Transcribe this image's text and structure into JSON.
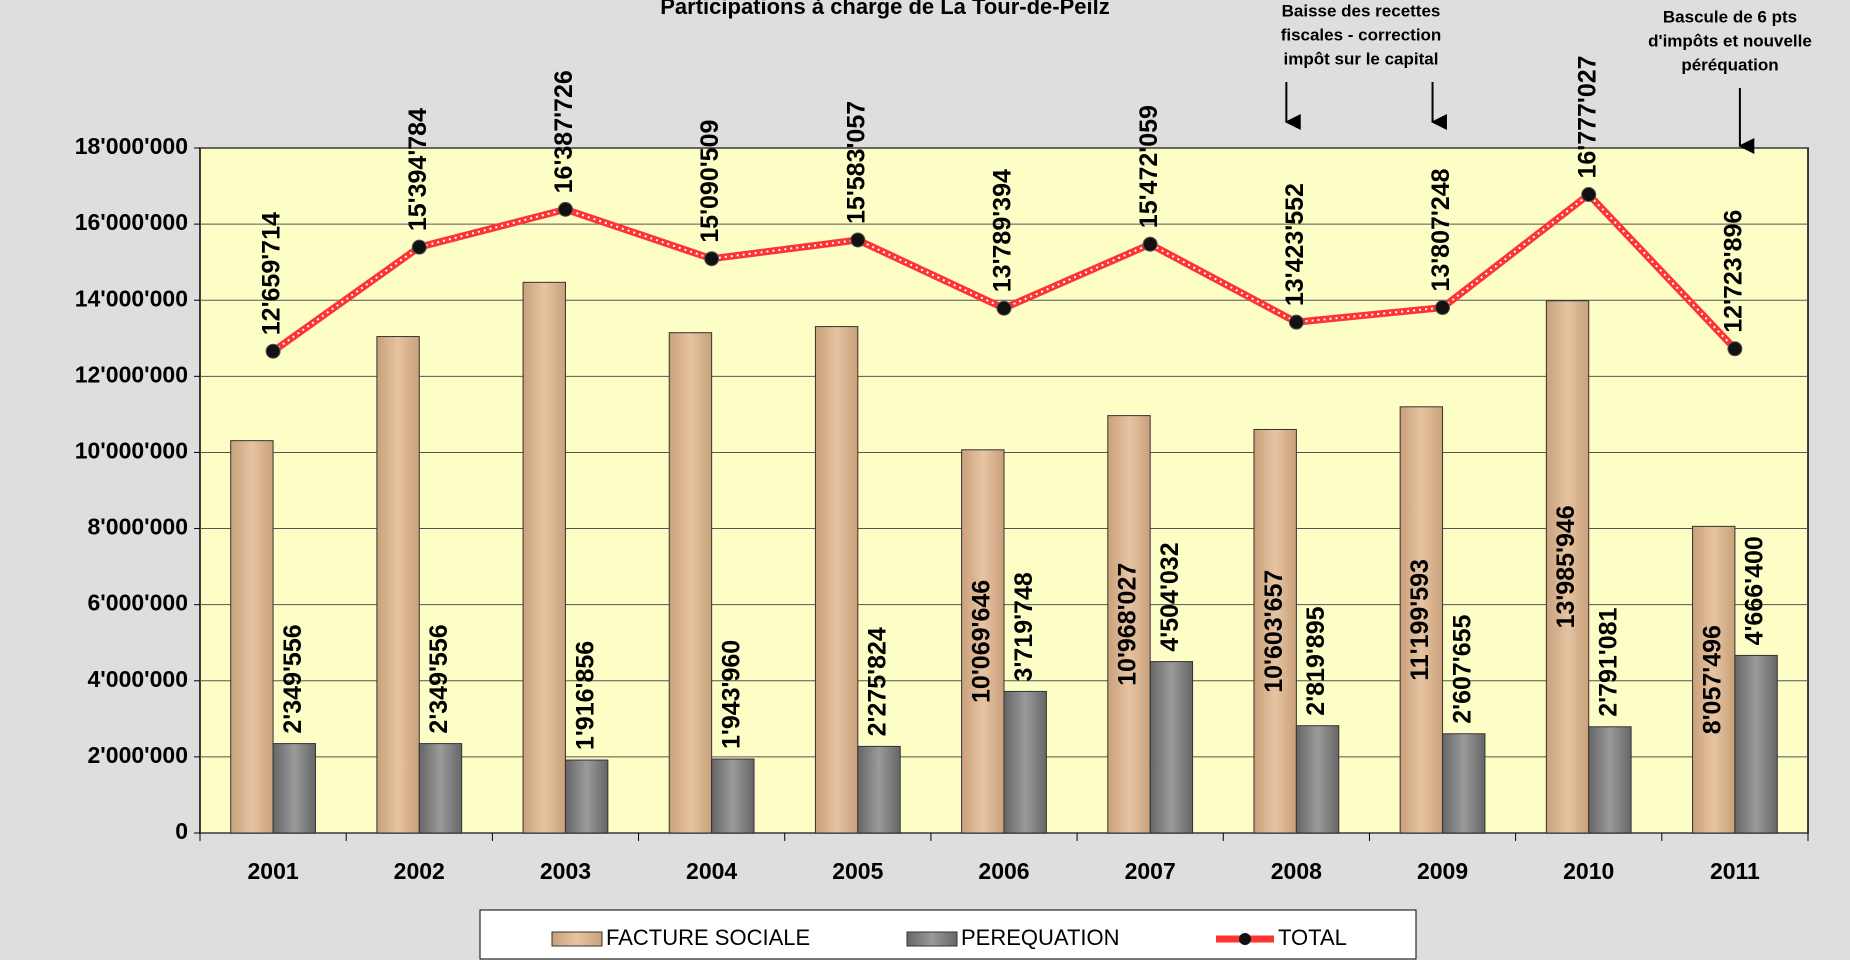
{
  "chart_data": {
    "type": "bar",
    "title": "Participations à charge de La Tour-de-Peilz",
    "categories": [
      "2001",
      "2002",
      "2003",
      "2004",
      "2005",
      "2006",
      "2007",
      "2008",
      "2009",
      "2010",
      "2011"
    ],
    "series": [
      {
        "name": "FACTURE SOCIALE",
        "color": "#d6b08a",
        "type": "bar",
        "values": [
          10310158,
          13045228,
          14470870,
          13146549,
          13307233,
          10069646,
          10968027,
          10603657,
          11199593,
          13985946,
          8057496
        ],
        "value_labels": [
          null,
          null,
          null,
          null,
          null,
          "10'069'646",
          "10'968'027",
          "10'603'657",
          "11'199'593",
          "13'985'946",
          "8'057'496"
        ]
      },
      {
        "name": "PEREQUATION",
        "color": "#7f7f7f",
        "type": "bar",
        "values": [
          2349556,
          2349556,
          1916856,
          1943960,
          2275824,
          3719748,
          4504032,
          2819895,
          2607655,
          2791081,
          4666400
        ],
        "value_labels": [
          "2'349'556",
          "2'349'556",
          "1'916'856",
          "1'943'960",
          "2'275'824",
          "3'719'748",
          "4'504'032",
          "2'819'895",
          "2'607'655",
          "2'791'081",
          "4'666'400"
        ]
      },
      {
        "name": "TOTAL",
        "color": "#ff3333",
        "type": "line",
        "values": [
          12659714,
          15394784,
          16387726,
          15090509,
          15583057,
          13789394,
          15472059,
          13423552,
          13807248,
          16777027,
          12723896
        ],
        "value_labels": [
          "12'659'714",
          "15'394'784",
          "16'387'726",
          "15'090'509",
          "15'583'057",
          "13'789'394",
          "15'472'059",
          "13'423'552",
          "13'807'248",
          "16'777'027",
          "12'723'896"
        ]
      }
    ],
    "ylim": [
      0,
      18000000
    ],
    "yticks": [
      0,
      {
        "value": 2000000,
        "label": "2'000'000"
      },
      {
        "value": 4000000,
        "label": "4'000'000"
      },
      {
        "value": 6000000,
        "label": "6'000'000"
      },
      {
        "value": 8000000,
        "label": "8'000'000"
      },
      {
        "value": 10000000,
        "label": "10'000'000"
      },
      {
        "value": 12000000,
        "label": "12'000'000"
      },
      {
        "value": 14000000,
        "label": "14'000'000"
      },
      {
        "value": 16000000,
        "label": "16'000'000"
      },
      {
        "value": 18000000,
        "label": "18'000'000"
      }
    ],
    "grid": true,
    "legend": "bottom",
    "annotations": [
      [
        "Baisse des recettes",
        "fiscales - correction",
        "impôt sur le capital"
      ],
      [
        "Bascule de 6 pts",
        "d'impôts et nouvelle",
        "péréquation"
      ]
    ]
  }
}
